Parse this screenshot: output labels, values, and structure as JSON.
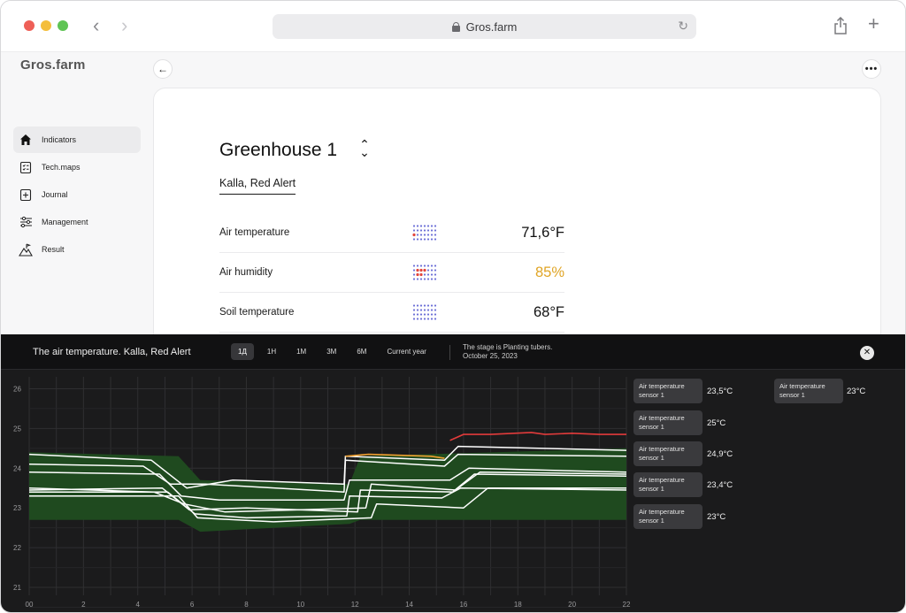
{
  "browser": {
    "url": "Gros.farm"
  },
  "app": {
    "logo": "Gros.farm"
  },
  "sidebar": {
    "items": [
      {
        "label": "Indicators",
        "icon": "home-icon",
        "active": true
      },
      {
        "label": "Tech.maps",
        "icon": "checklist-icon",
        "active": false
      },
      {
        "label": "Journal",
        "icon": "journal-icon",
        "active": false
      },
      {
        "label": "Management",
        "icon": "sliders-icon",
        "active": false
      },
      {
        "label": "Result",
        "icon": "mountain-flag-icon",
        "active": false
      }
    ]
  },
  "greenhouse": {
    "title": "Greenhouse 1",
    "crop_tab": "Kalla, Red Alert",
    "indicators": [
      {
        "label": "Air temperature",
        "value": "71,6°F",
        "status": "normal"
      },
      {
        "label": "Air humidity",
        "value": "85%",
        "status": "warning"
      },
      {
        "label": "Soil temperature",
        "value": "68°F",
        "status": "normal"
      }
    ]
  },
  "panel": {
    "title": "The air temperature. Kalla, Red Alert",
    "periods": [
      "1Д",
      "1H",
      "1M",
      "3M",
      "6M",
      "Current year"
    ],
    "active_period": "1Д",
    "stage_line1": "The stage is Planting tubers.",
    "stage_line2": "October 25, 2023",
    "close_symbol": "✕"
  },
  "sensors": [
    {
      "label_line1": "Air temperature",
      "label_line2": "sensor 1",
      "value": "23,5°C"
    },
    {
      "label_line1": "Air temperature",
      "label_line2": "sensor 1",
      "value": "25°C"
    },
    {
      "label_line1": "Air temperature",
      "label_line2": "sensor 1",
      "value": "24,9°C"
    },
    {
      "label_line1": "Air temperature",
      "label_line2": "sensor 1",
      "value": "23,4°C"
    },
    {
      "label_line1": "Air temperature",
      "label_line2": "sensor 1",
      "value": "23°C"
    },
    {
      "label_line1": "Air temperature",
      "label_line2": "sensor 1",
      "value": "23°C"
    }
  ],
  "colors": {
    "accent_warning": "#e0a526",
    "band": "#1f4a1f",
    "alert_line": "#e23b3b",
    "orange_line": "#f0a030"
  },
  "chart_data": {
    "type": "line",
    "xlabel": "",
    "ylabel": "",
    "x_ticks": [
      "00",
      "2",
      "4",
      "6",
      "8",
      "10",
      "12",
      "14",
      "16",
      "18",
      "20",
      "22"
    ],
    "y_ticks": [
      "26",
      "25",
      "24",
      "23",
      "22",
      "21"
    ],
    "xlim": [
      0,
      22
    ],
    "ylim": [
      20.8,
      26.3
    ],
    "grid": true,
    "band": {
      "upper": [
        [
          0,
          24.4
        ],
        [
          5.5,
          24.3
        ],
        [
          6.3,
          23.7
        ],
        [
          11.8,
          23.6
        ],
        [
          12.2,
          24.3
        ],
        [
          22,
          24.5
        ]
      ],
      "lower": [
        [
          0,
          22.7
        ],
        [
          5.5,
          22.7
        ],
        [
          6.3,
          22.4
        ],
        [
          11.8,
          22.6
        ],
        [
          12.2,
          22.7
        ],
        [
          22,
          22.7
        ]
      ]
    },
    "series": [
      {
        "color": "#ffffff",
        "points": [
          [
            0,
            24.35
          ],
          [
            4.5,
            24.2
          ],
          [
            5.8,
            23.5
          ],
          [
            7.5,
            23.7
          ],
          [
            11.6,
            23.6
          ],
          [
            11.65,
            24.3
          ],
          [
            15.3,
            24.2
          ],
          [
            15.8,
            24.55
          ],
          [
            22,
            24.45
          ]
        ]
      },
      {
        "color": "#ffffff",
        "points": [
          [
            0,
            24.1
          ],
          [
            4.2,
            24.05
          ],
          [
            5.2,
            23.6
          ],
          [
            6.5,
            23.6
          ],
          [
            11.6,
            23.4
          ],
          [
            11.65,
            24.2
          ],
          [
            15.3,
            24.05
          ],
          [
            15.8,
            24.35
          ],
          [
            22,
            24.3
          ]
        ]
      },
      {
        "color": "#ffffff",
        "points": [
          [
            0,
            23.9
          ],
          [
            4.8,
            23.85
          ],
          [
            5.6,
            23.3
          ],
          [
            7,
            23.2
          ],
          [
            11.6,
            23.2
          ],
          [
            11.8,
            23.7
          ],
          [
            15.5,
            23.7
          ],
          [
            16.2,
            24.0
          ],
          [
            22,
            23.9
          ]
        ]
      },
      {
        "color": "#ffffff",
        "points": [
          [
            0,
            23.45
          ],
          [
            4.9,
            23.5
          ],
          [
            5.9,
            22.95
          ],
          [
            8,
            23.0
          ],
          [
            12.1,
            22.9
          ],
          [
            12.2,
            23.45
          ],
          [
            15.6,
            23.4
          ],
          [
            16.4,
            23.85
          ],
          [
            22,
            23.8
          ]
        ]
      },
      {
        "color": "#ffffff",
        "points": [
          [
            0,
            23.4
          ],
          [
            5.1,
            23.4
          ],
          [
            6.1,
            22.85
          ],
          [
            8,
            22.75
          ],
          [
            11.7,
            22.8
          ],
          [
            11.8,
            23.3
          ],
          [
            15.2,
            23.25
          ],
          [
            15.9,
            23.5
          ],
          [
            22,
            23.45
          ]
        ]
      },
      {
        "color": "#ffffff",
        "points": [
          [
            0,
            23.3
          ],
          [
            5.5,
            23.3
          ],
          [
            6.2,
            22.75
          ],
          [
            9,
            22.65
          ],
          [
            12.6,
            22.75
          ],
          [
            12.8,
            23.1
          ],
          [
            16,
            23.0
          ],
          [
            16.9,
            23.5
          ],
          [
            22,
            23.5
          ]
        ]
      },
      {
        "color": "#ffffff",
        "points": [
          [
            0,
            23.5
          ],
          [
            4.6,
            23.4
          ],
          [
            5.7,
            23.1
          ],
          [
            7.2,
            22.9
          ],
          [
            12.4,
            23.0
          ],
          [
            12.6,
            23.6
          ],
          [
            15.7,
            23.45
          ],
          [
            16.6,
            23.9
          ],
          [
            22,
            23.85
          ]
        ]
      }
    ],
    "alert_series": {
      "color": "#e23b3b",
      "points": [
        [
          15.5,
          24.7
        ],
        [
          16.0,
          24.85
        ],
        [
          17,
          24.85
        ],
        [
          18.5,
          24.9
        ],
        [
          19,
          24.85
        ],
        [
          20,
          24.88
        ],
        [
          21,
          24.85
        ],
        [
          22,
          24.85
        ]
      ]
    },
    "warning_series": {
      "color": "#f0a030",
      "points": [
        [
          11.65,
          24.3
        ],
        [
          12.5,
          24.35
        ],
        [
          14.8,
          24.3
        ],
        [
          15.3,
          24.25
        ]
      ]
    }
  }
}
